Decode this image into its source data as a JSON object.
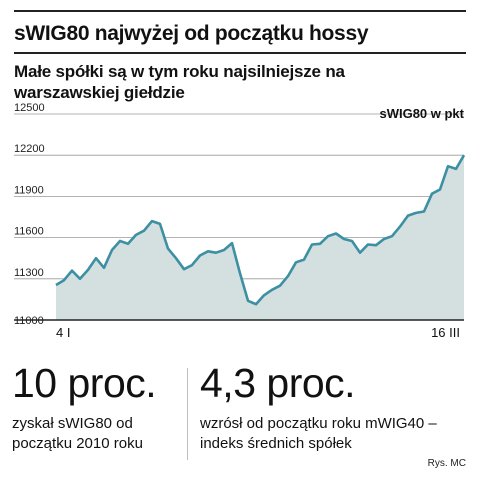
{
  "title": "sWIG80 najwyżej od początku hossy",
  "subtitle": "Małe spółki są w tym roku najsilniejsze na warszawskiej giełdzie",
  "chart_data": {
    "type": "area",
    "unit_label": "sWIG80 w pkt",
    "ylim": [
      11000,
      12500
    ],
    "yticks": [
      12500,
      12200,
      11900,
      11600,
      11300,
      11000
    ],
    "x_labels": {
      "start": "4 I",
      "end": "16 III"
    },
    "grid": true,
    "colors": {
      "line": "#3d8fa3",
      "fill": "#d4e0df",
      "grid": "#9a9a9a",
      "axis": "#222222"
    },
    "values": [
      11255,
      11290,
      11360,
      11300,
      11365,
      11450,
      11380,
      11510,
      11575,
      11555,
      11620,
      11650,
      11720,
      11700,
      11520,
      11450,
      11370,
      11400,
      11470,
      11500,
      11490,
      11510,
      11560,
      11340,
      11140,
      11115,
      11180,
      11220,
      11250,
      11320,
      11420,
      11440,
      11550,
      11555,
      11610,
      11630,
      11590,
      11575,
      11490,
      11550,
      11545,
      11590,
      11610,
      11680,
      11760,
      11780,
      11790,
      11920,
      11950,
      12120,
      12100,
      12200
    ]
  },
  "stats": [
    {
      "value": "10 proc.",
      "description": "zyskał sWIG80 od początku 2010 roku"
    },
    {
      "value": "4,3 proc.",
      "description": "wzrósł od początku roku mWIG40 – indeks średnich spółek"
    }
  ],
  "credit": "Rys. MC"
}
